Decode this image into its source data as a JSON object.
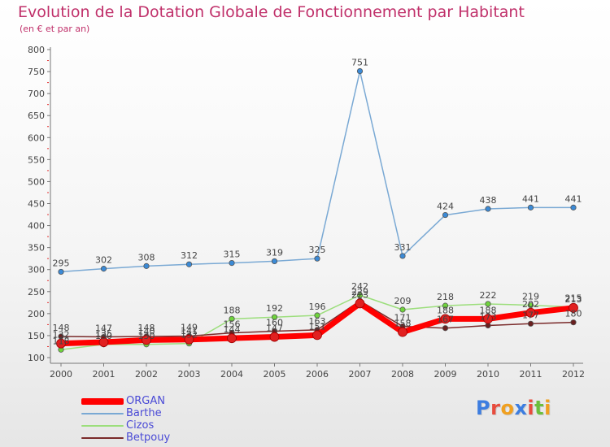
{
  "title": "Evolution de la Dotation Globale de Fonctionnement par Habitant",
  "subtitle": "(en € et par an)",
  "logo": "Proxiti",
  "colors": {
    "title": "#c0306a",
    "axis": "#555555",
    "tick_red": "#e23030"
  },
  "chart_data": {
    "type": "line",
    "title": "Evolution de la Dotation Globale de Fonctionnement par Habitant",
    "subtitle": "(en € et par an)",
    "xlabel": "",
    "ylabel": "",
    "ylim": [
      100,
      800
    ],
    "yticks": [
      100,
      150,
      200,
      250,
      300,
      350,
      400,
      450,
      500,
      550,
      600,
      650,
      700,
      750,
      800
    ],
    "categories": [
      "2000",
      "2001",
      "2002",
      "2003",
      "2004",
      "2005",
      "2006",
      "2007",
      "2008",
      "2009",
      "2010",
      "2011",
      "2012"
    ],
    "series": [
      {
        "name": "ORGAN",
        "color": "#ff0000",
        "marker_color": "#e12020",
        "values": [
          132,
          135,
          140,
          141,
          144,
          147,
          151,
          223,
          158,
          188,
          188,
          202,
          213
        ]
      },
      {
        "name": "Barthe",
        "color": "#7aa9d4",
        "marker_color": "#3b8ad6",
        "values": [
          295,
          302,
          308,
          312,
          315,
          319,
          325,
          751,
          331,
          424,
          438,
          441,
          441
        ]
      },
      {
        "name": "Cizos",
        "color": "#9cde7c",
        "marker_color": "#6fd43c",
        "values": [
          118,
          130,
          130,
          132,
          188,
          192,
          196,
          242,
          209,
          218,
          222,
          219,
          215
        ]
      },
      {
        "name": "Betpouy",
        "color": "#7a2a2a",
        "marker_color": "#6a2020",
        "values": [
          148,
          147,
          148,
          149,
          156,
          160,
          163,
          229,
          171,
          167,
          173,
          177,
          180
        ]
      }
    ]
  }
}
